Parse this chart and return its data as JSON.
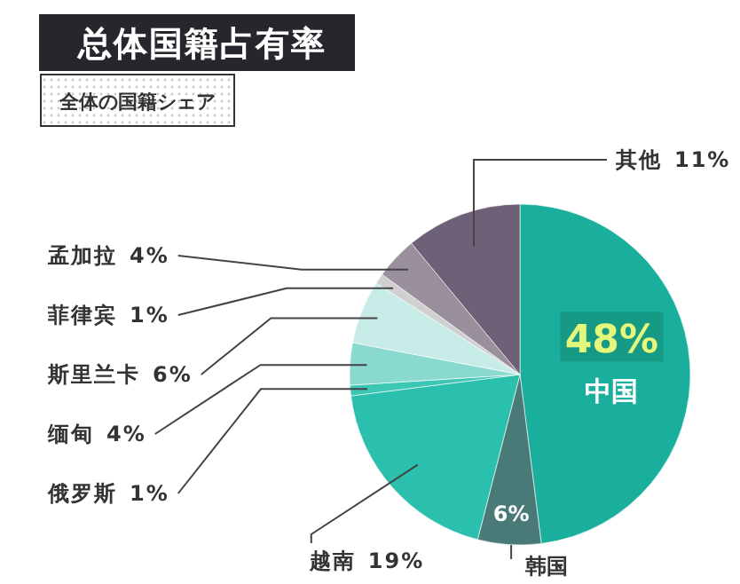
{
  "chart_data": {
    "type": "pie",
    "title": "总体国籍占有率",
    "subtitle": "全体の国籍シェア",
    "categories": [
      "中国",
      "韩国",
      "越南",
      "俄罗斯",
      "缅甸",
      "斯里兰卡",
      "菲律宾",
      "孟加拉",
      "其他"
    ],
    "values": [
      48,
      6,
      19,
      1,
      4,
      6,
      1,
      4,
      11
    ],
    "colors": [
      "#1aaf9c",
      "#4a7a78",
      "#2bbfae",
      "#3cc7b4",
      "#8ad9cf",
      "#c7ece7",
      "#d0d0d0",
      "#9a8f9c",
      "#6e6077"
    ],
    "value_labels": [
      "48%",
      "6%",
      "19%",
      "1%",
      "4%",
      "6%",
      "1%",
      "4%",
      "11%"
    ]
  }
}
